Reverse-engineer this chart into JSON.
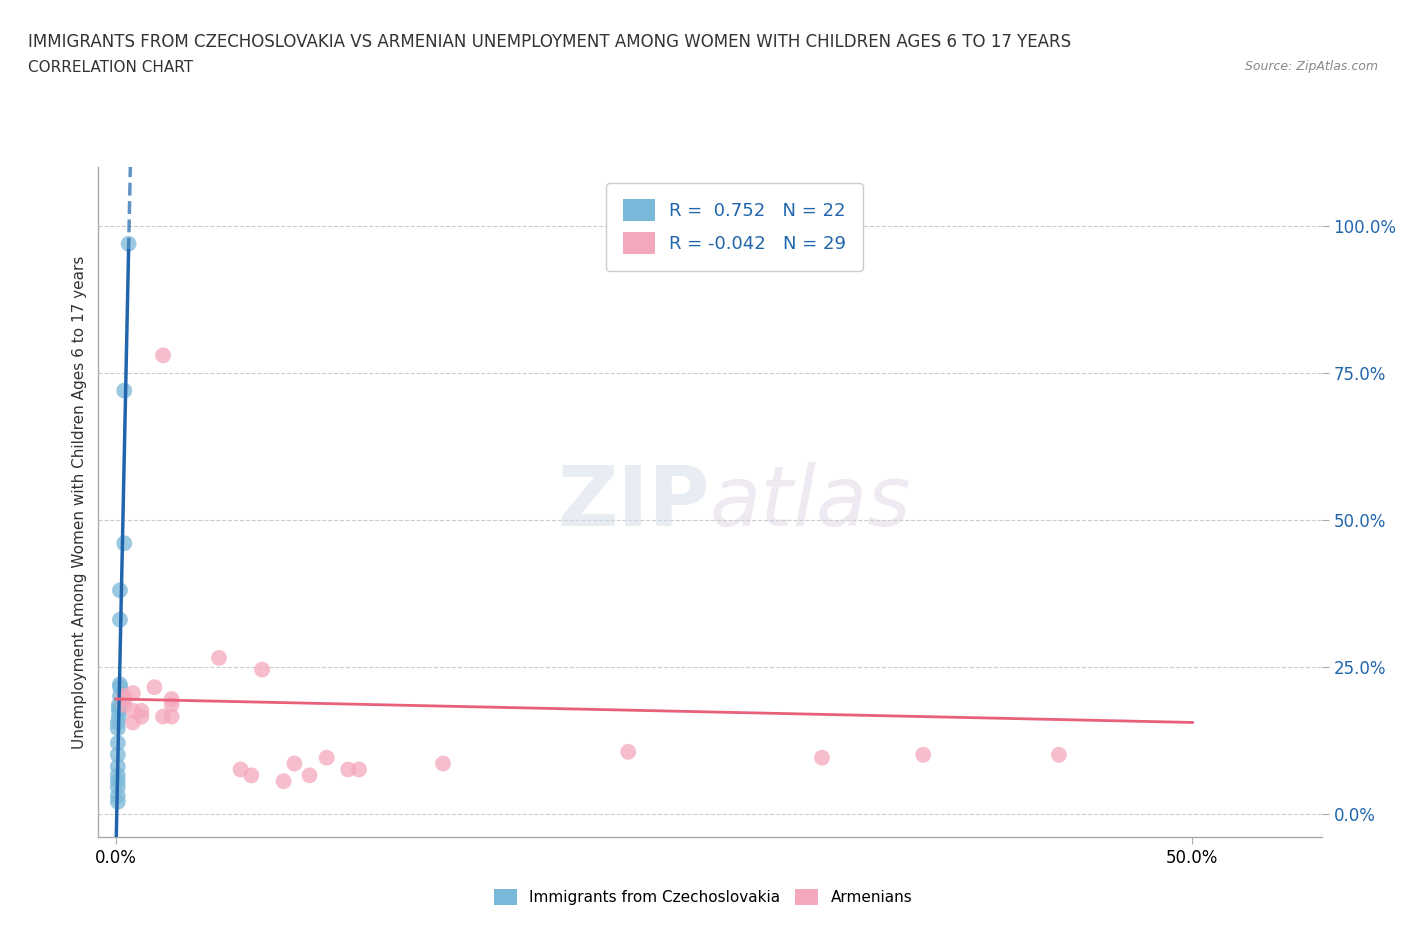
{
  "title": "IMMIGRANTS FROM CZECHOSLOVAKIA VS ARMENIAN UNEMPLOYMENT AMONG WOMEN WITH CHILDREN AGES 6 TO 17 YEARS",
  "subtitle": "CORRELATION CHART",
  "source": "Source: ZipAtlas.com",
  "xlabel_ticks": [
    "0.0%",
    "50.0%"
  ],
  "ylabel_ticks": [
    "0.0%",
    "25.0%",
    "50.0%",
    "75.0%",
    "100.0%"
  ],
  "xlabel_tick_vals": [
    0.0,
    0.5
  ],
  "ylabel_tick_vals": [
    0.0,
    0.25,
    0.5,
    0.75,
    1.0
  ],
  "xlim": [
    -0.008,
    0.56
  ],
  "ylim": [
    -0.04,
    1.1
  ],
  "ylabel": "Unemployment Among Women with Children Ages 6 to 17 years",
  "legend1_label": "Immigrants from Czechoslovakia",
  "legend2_label": "Armenians",
  "r1": 0.752,
  "n1": 22,
  "r2": -0.042,
  "n2": 29,
  "color_blue": "#7ab8d9",
  "color_pink": "#f4a8bc",
  "line_blue": "#2166ac",
  "line_pink": "#e8607a",
  "background": "#ffffff",
  "blue_scatter_x": [
    0.006,
    0.004,
    0.004,
    0.002,
    0.002,
    0.002,
    0.002,
    0.002,
    0.0015,
    0.0015,
    0.0015,
    0.0015,
    0.001,
    0.001,
    0.001,
    0.001,
    0.001,
    0.001,
    0.001,
    0.001,
    0.001,
    0.001
  ],
  "blue_scatter_y": [
    0.97,
    0.72,
    0.46,
    0.38,
    0.33,
    0.22,
    0.215,
    0.2,
    0.185,
    0.18,
    0.175,
    0.165,
    0.155,
    0.145,
    0.12,
    0.1,
    0.08,
    0.065,
    0.055,
    0.045,
    0.03,
    0.02
  ],
  "pink_scatter_x": [
    0.004,
    0.004,
    0.004,
    0.008,
    0.008,
    0.008,
    0.012,
    0.012,
    0.018,
    0.022,
    0.022,
    0.026,
    0.026,
    0.026,
    0.048,
    0.058,
    0.063,
    0.068,
    0.078,
    0.083,
    0.09,
    0.098,
    0.108,
    0.113,
    0.152,
    0.238,
    0.328,
    0.375,
    0.438
  ],
  "pink_scatter_y": [
    0.2,
    0.195,
    0.185,
    0.205,
    0.175,
    0.155,
    0.175,
    0.165,
    0.215,
    0.78,
    0.165,
    0.195,
    0.185,
    0.165,
    0.265,
    0.075,
    0.065,
    0.245,
    0.055,
    0.085,
    0.065,
    0.095,
    0.075,
    0.075,
    0.085,
    0.105,
    0.095,
    0.1,
    0.1
  ],
  "grid_color": "#cccccc",
  "watermark_text": "ZIP",
  "watermark_text2": "atlas",
  "marker_size": 130,
  "pink_line_start_x": 0.0,
  "pink_line_end_x": 0.5,
  "pink_line_start_y": 0.195,
  "pink_line_end_y": 0.155
}
